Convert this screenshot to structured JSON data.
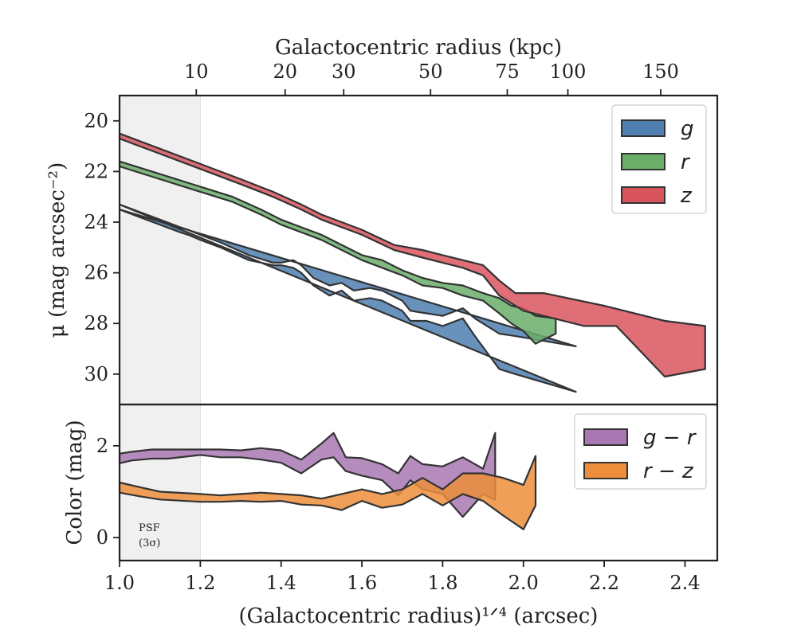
{
  "chart_data": [
    {
      "type": "area",
      "panel": "top",
      "ylabel": "μ (mag arcsec⁻²)",
      "top_xlabel": "Galactocentric radius (kpc)",
      "xlim": [
        1.0,
        2.48
      ],
      "ylim": [
        31.2,
        19.0
      ],
      "y_inverted": true,
      "yticks": [
        20,
        22,
        24,
        26,
        28,
        30
      ],
      "top_ticks": [
        {
          "label": "10",
          "x": 1.19
        },
        {
          "label": "20",
          "x": 1.41
        },
        {
          "label": "30",
          "x": 1.555
        },
        {
          "label": "50",
          "x": 1.77
        },
        {
          "label": "75",
          "x": 1.96
        },
        {
          "label": "100",
          "x": 2.11
        },
        {
          "label": "150",
          "x": 2.34
        }
      ],
      "legend_position": "upper right",
      "series": [
        {
          "name": "g",
          "color": "#4e7fb0",
          "upper": [
            [
              1.0,
              23.3
            ],
            [
              1.05,
              23.6
            ],
            [
              1.1,
              23.9
            ],
            [
              1.15,
              24.2
            ],
            [
              1.17,
              24.3
            ],
            [
              1.2,
              24.5
            ],
            [
              1.25,
              24.8
            ],
            [
              1.32,
              25.3
            ],
            [
              1.38,
              25.6
            ],
            [
              1.4,
              25.6
            ],
            [
              1.43,
              25.5
            ],
            [
              1.45,
              25.7
            ],
            [
              1.48,
              26.2
            ],
            [
              1.52,
              26.5
            ],
            [
              1.55,
              26.4
            ],
            [
              1.58,
              26.7
            ],
            [
              1.62,
              26.6
            ],
            [
              1.65,
              26.7
            ],
            [
              1.7,
              27.1
            ],
            [
              1.72,
              27.5
            ],
            [
              1.76,
              27.6
            ],
            [
              1.8,
              27.7
            ],
            [
              1.85,
              27.4
            ],
            [
              1.88,
              27.8
            ],
            [
              1.94,
              28.4
            ],
            [
              1.98,
              28.5
            ],
            [
              2.13,
              28.9
            ]
          ],
          "lower": [
            [
              1.0,
              23.5
            ],
            [
              1.05,
              23.8
            ],
            [
              1.1,
              24.1
            ],
            [
              1.15,
              24.4
            ],
            [
              1.17,
              24.5
            ],
            [
              1.2,
              24.7
            ],
            [
              1.25,
              25.0
            ],
            [
              1.32,
              25.5
            ],
            [
              1.38,
              25.7
            ],
            [
              1.4,
              25.7
            ],
            [
              1.43,
              25.8
            ],
            [
              1.45,
              26.0
            ],
            [
              1.48,
              26.5
            ],
            [
              1.52,
              26.9
            ],
            [
              1.55,
              26.7
            ],
            [
              1.58,
              27.1
            ],
            [
              1.62,
              27.0
            ],
            [
              1.65,
              27.1
            ],
            [
              1.7,
              27.5
            ],
            [
              1.72,
              27.9
            ],
            [
              1.76,
              27.9
            ],
            [
              1.8,
              28.1
            ],
            [
              1.85,
              27.8
            ],
            [
              1.88,
              28.5
            ],
            [
              1.94,
              29.8
            ],
            [
              1.98,
              30.0
            ],
            [
              2.13,
              30.7
            ]
          ]
        },
        {
          "name": "r",
          "color": "#6aae6a",
          "upper": [
            [
              1.0,
              21.6
            ],
            [
              1.1,
              22.1
            ],
            [
              1.2,
              22.6
            ],
            [
              1.28,
              23.0
            ],
            [
              1.35,
              23.5
            ],
            [
              1.4,
              23.9
            ],
            [
              1.45,
              24.2
            ],
            [
              1.5,
              24.5
            ],
            [
              1.55,
              24.9
            ],
            [
              1.6,
              25.3
            ],
            [
              1.65,
              25.5
            ],
            [
              1.7,
              25.9
            ],
            [
              1.75,
              26.2
            ],
            [
              1.8,
              26.4
            ],
            [
              1.85,
              26.5
            ],
            [
              1.9,
              26.8
            ],
            [
              1.94,
              27.0
            ],
            [
              1.97,
              27.3
            ],
            [
              2.0,
              27.4
            ],
            [
              2.03,
              27.7
            ],
            [
              2.08,
              27.8
            ]
          ],
          "lower": [
            [
              2.08,
              28.4
            ],
            [
              2.03,
              28.8
            ],
            [
              2.0,
              28.3
            ],
            [
              1.97,
              28.0
            ],
            [
              1.94,
              27.6
            ],
            [
              1.9,
              27.1
            ],
            [
              1.85,
              26.9
            ],
            [
              1.8,
              26.6
            ],
            [
              1.75,
              26.5
            ],
            [
              1.7,
              26.1
            ],
            [
              1.65,
              25.8
            ],
            [
              1.6,
              25.5
            ],
            [
              1.55,
              25.1
            ],
            [
              1.5,
              24.7
            ],
            [
              1.45,
              24.4
            ],
            [
              1.4,
              24.1
            ],
            [
              1.35,
              23.7
            ],
            [
              1.28,
              23.2
            ],
            [
              1.2,
              22.8
            ],
            [
              1.1,
              22.3
            ],
            [
              1.0,
              21.8
            ]
          ]
        },
        {
          "name": "z",
          "color": "#d9555e",
          "upper": [
            [
              1.0,
              20.5
            ],
            [
              1.1,
              21.1
            ],
            [
              1.2,
              21.7
            ],
            [
              1.3,
              22.3
            ],
            [
              1.38,
              22.8
            ],
            [
              1.45,
              23.3
            ],
            [
              1.5,
              23.7
            ],
            [
              1.55,
              24.0
            ],
            [
              1.6,
              24.3
            ],
            [
              1.68,
              24.9
            ],
            [
              1.75,
              25.1
            ],
            [
              1.8,
              25.3
            ],
            [
              1.85,
              25.5
            ],
            [
              1.9,
              25.7
            ],
            [
              1.94,
              26.3
            ],
            [
              1.98,
              26.8
            ],
            [
              2.05,
              26.8
            ],
            [
              2.2,
              27.3
            ],
            [
              2.35,
              27.9
            ],
            [
              2.45,
              28.1
            ]
          ],
          "lower": [
            [
              2.45,
              29.8
            ],
            [
              2.35,
              30.1
            ],
            [
              2.23,
              28.1
            ],
            [
              2.15,
              28.1
            ],
            [
              2.0,
              27.5
            ],
            [
              1.97,
              27.2
            ],
            [
              1.94,
              26.9
            ],
            [
              1.9,
              26.1
            ],
            [
              1.85,
              25.8
            ],
            [
              1.8,
              25.6
            ],
            [
              1.75,
              25.4
            ],
            [
              1.68,
              25.1
            ],
            [
              1.6,
              24.5
            ],
            [
              1.55,
              24.2
            ],
            [
              1.5,
              23.9
            ],
            [
              1.45,
              23.5
            ],
            [
              1.38,
              23.0
            ],
            [
              1.3,
              22.5
            ],
            [
              1.2,
              21.9
            ],
            [
              1.1,
              21.3
            ],
            [
              1.0,
              20.7
            ]
          ]
        }
      ]
    },
    {
      "type": "area",
      "panel": "bottom",
      "ylabel": "Color (mag)",
      "xlabel": "(Galactocentric radius)¹ᐟ⁴ (arcsec)",
      "xlim": [
        1.0,
        2.48
      ],
      "ylim": [
        -0.5,
        2.9
      ],
      "xticks": [
        1.0,
        1.2,
        1.4,
        1.6,
        1.8,
        2.0,
        2.2,
        2.4
      ],
      "xtick_labels": [
        "1.0",
        "1.2",
        "1.4",
        "1.6",
        "1.8",
        "2.0",
        "2.2",
        "2.4"
      ],
      "yticks": [
        0,
        2
      ],
      "legend_position": "upper right",
      "series": [
        {
          "name": "g − r",
          "color": "#a978b3",
          "upper": [
            [
              1.0,
              1.83
            ],
            [
              1.03,
              1.87
            ],
            [
              1.08,
              1.92
            ],
            [
              1.12,
              1.92
            ],
            [
              1.2,
              1.92
            ],
            [
              1.25,
              1.92
            ],
            [
              1.3,
              1.9
            ],
            [
              1.35,
              1.95
            ],
            [
              1.4,
              1.9
            ],
            [
              1.45,
              1.7
            ],
            [
              1.5,
              2.05
            ],
            [
              1.53,
              2.28
            ],
            [
              1.56,
              1.75
            ],
            [
              1.6,
              1.73
            ],
            [
              1.65,
              1.6
            ],
            [
              1.69,
              1.4
            ],
            [
              1.72,
              1.78
            ],
            [
              1.75,
              1.6
            ],
            [
              1.8,
              1.55
            ],
            [
              1.85,
              1.75
            ],
            [
              1.9,
              1.5
            ],
            [
              1.93,
              2.28
            ]
          ],
          "lower": [
            [
              1.93,
              0.82
            ],
            [
              1.9,
              0.95
            ],
            [
              1.85,
              0.45
            ],
            [
              1.8,
              0.95
            ],
            [
              1.75,
              1.05
            ],
            [
              1.72,
              1.25
            ],
            [
              1.69,
              0.92
            ],
            [
              1.65,
              1.25
            ],
            [
              1.6,
              1.35
            ],
            [
              1.56,
              1.45
            ],
            [
              1.53,
              1.75
            ],
            [
              1.5,
              1.7
            ],
            [
              1.45,
              1.4
            ],
            [
              1.4,
              1.63
            ],
            [
              1.35,
              1.7
            ],
            [
              1.3,
              1.75
            ],
            [
              1.25,
              1.75
            ],
            [
              1.2,
              1.8
            ],
            [
              1.12,
              1.72
            ],
            [
              1.08,
              1.72
            ],
            [
              1.03,
              1.68
            ],
            [
              1.0,
              1.62
            ]
          ]
        },
        {
          "name": "r − z",
          "color": "#ec8e3a",
          "upper": [
            [
              1.0,
              1.2
            ],
            [
              1.05,
              1.1
            ],
            [
              1.1,
              1.0
            ],
            [
              1.2,
              0.95
            ],
            [
              1.25,
              0.92
            ],
            [
              1.3,
              0.95
            ],
            [
              1.35,
              0.98
            ],
            [
              1.4,
              0.95
            ],
            [
              1.45,
              0.92
            ],
            [
              1.5,
              0.85
            ],
            [
              1.55,
              0.95
            ],
            [
              1.6,
              1.05
            ],
            [
              1.65,
              0.95
            ],
            [
              1.7,
              1.05
            ],
            [
              1.75,
              1.3
            ],
            [
              1.8,
              1.05
            ],
            [
              1.85,
              1.4
            ],
            [
              1.9,
              1.4
            ],
            [
              1.95,
              1.3
            ],
            [
              2.0,
              1.15
            ],
            [
              2.03,
              1.78
            ]
          ],
          "lower": [
            [
              2.03,
              0.7
            ],
            [
              2.0,
              0.18
            ],
            [
              1.95,
              0.48
            ],
            [
              1.9,
              0.8
            ],
            [
              1.85,
              0.95
            ],
            [
              1.8,
              0.7
            ],
            [
              1.75,
              0.95
            ],
            [
              1.7,
              0.72
            ],
            [
              1.65,
              0.65
            ],
            [
              1.6,
              0.8
            ],
            [
              1.55,
              0.6
            ],
            [
              1.5,
              0.7
            ],
            [
              1.45,
              0.72
            ],
            [
              1.4,
              0.8
            ],
            [
              1.35,
              0.78
            ],
            [
              1.3,
              0.8
            ],
            [
              1.25,
              0.78
            ],
            [
              1.2,
              0.78
            ],
            [
              1.1,
              0.83
            ],
            [
              1.05,
              0.9
            ],
            [
              1.0,
              0.98
            ]
          ]
        }
      ]
    }
  ],
  "psf_region": {
    "x_max": 1.2,
    "color": "#f0f0f0",
    "label_line1": "PSF",
    "label_line2": "(3σ)"
  }
}
